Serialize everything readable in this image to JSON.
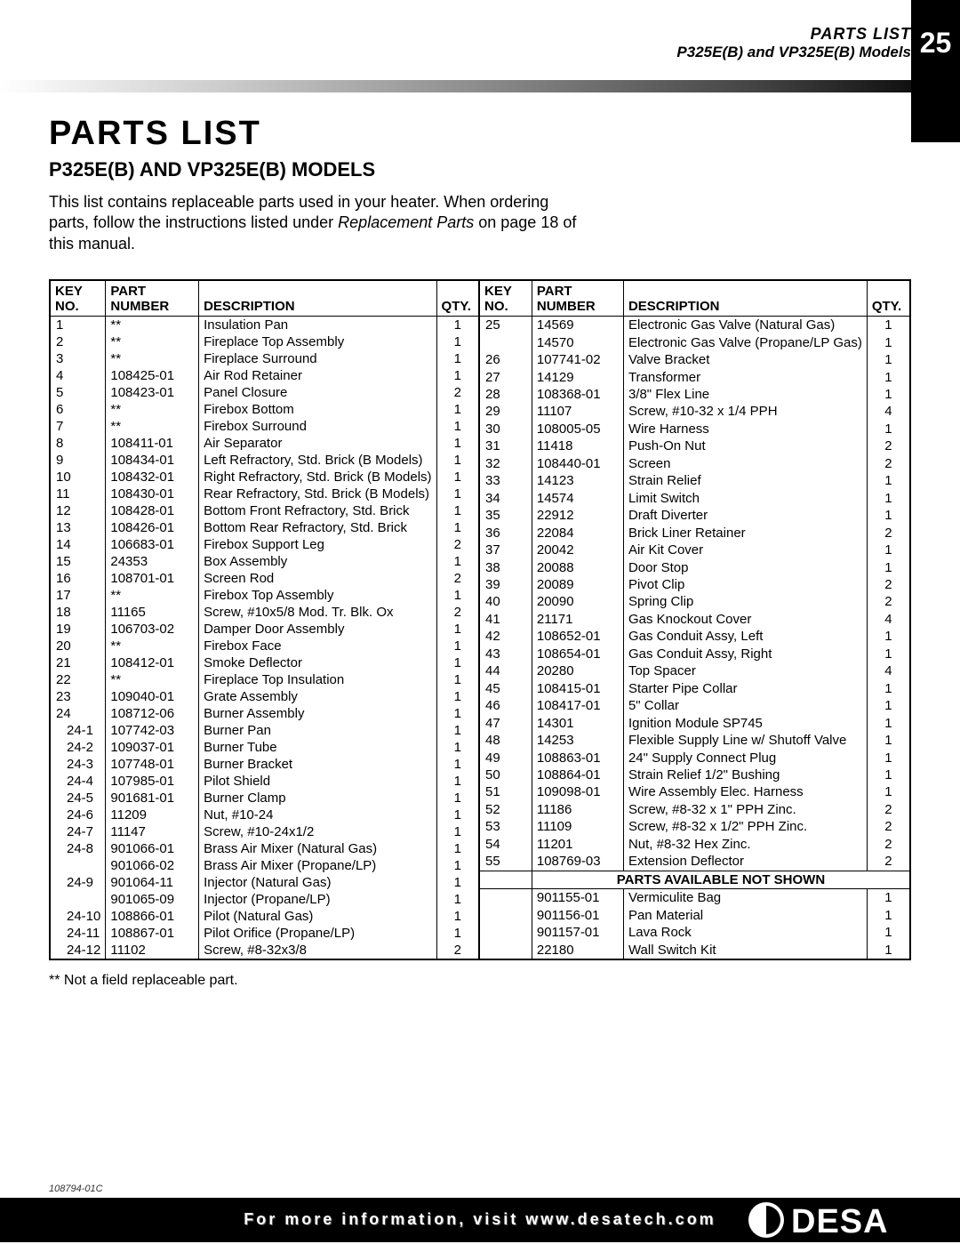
{
  "header": {
    "line1": "PARTS LIST",
    "line2": "P325E(B) and VP325E(B) Models",
    "page_number": "25"
  },
  "title": {
    "main": "PARTS LIST",
    "sub": "P325E(B) AND VP325E(B) MODELS",
    "intro_before": "This list contains replaceable parts used in your heater. When ordering parts, follow the instructions listed under ",
    "intro_italic": "Replacement Parts",
    "intro_after": " on page 18 of this manual."
  },
  "table_headers": {
    "key_top": "KEY",
    "key_bot": "NO.",
    "part_top": "PART",
    "part_bot": "NUMBER",
    "desc": "DESCRIPTION",
    "qty": "QTY."
  },
  "left_rows": [
    {
      "k": "1",
      "sub": false,
      "p": "**",
      "d": "Insulation Pan",
      "q": "1"
    },
    {
      "k": "2",
      "sub": false,
      "p": "**",
      "d": "Fireplace Top Assembly",
      "q": "1"
    },
    {
      "k": "3",
      "sub": false,
      "p": "**",
      "d": "Fireplace Surround",
      "q": "1"
    },
    {
      "k": "4",
      "sub": false,
      "p": "108425-01",
      "d": "Air Rod Retainer",
      "q": "1"
    },
    {
      "k": "5",
      "sub": false,
      "p": "108423-01",
      "d": "Panel Closure",
      "q": "2"
    },
    {
      "k": "6",
      "sub": false,
      "p": "**",
      "d": "Firebox Bottom",
      "q": "1"
    },
    {
      "k": "7",
      "sub": false,
      "p": "**",
      "d": "Firebox Surround",
      "q": "1"
    },
    {
      "k": "8",
      "sub": false,
      "p": "108411-01",
      "d": "Air Separator",
      "q": "1"
    },
    {
      "k": "9",
      "sub": false,
      "p": "108434-01",
      "d": "Left Refractory, Std. Brick (B Models)",
      "q": "1"
    },
    {
      "k": "10",
      "sub": false,
      "p": "108432-01",
      "d": "Right Refractory, Std. Brick (B Models)",
      "q": "1"
    },
    {
      "k": "11",
      "sub": false,
      "p": "108430-01",
      "d": "Rear Refractory, Std. Brick (B Models)",
      "q": "1"
    },
    {
      "k": "12",
      "sub": false,
      "p": "108428-01",
      "d": "Bottom Front Refractory, Std. Brick",
      "q": "1"
    },
    {
      "k": "13",
      "sub": false,
      "p": "108426-01",
      "d": "Bottom Rear Refractory, Std. Brick",
      "q": "1"
    },
    {
      "k": "14",
      "sub": false,
      "p": "106683-01",
      "d": "Firebox Support Leg",
      "q": "2"
    },
    {
      "k": "15",
      "sub": false,
      "p": "24353",
      "d": "Box Assembly",
      "q": "1"
    },
    {
      "k": "16",
      "sub": false,
      "p": "108701-01",
      "d": "Screen Rod",
      "q": "2"
    },
    {
      "k": "17",
      "sub": false,
      "p": "**",
      "d": "Firebox Top Assembly",
      "q": "1"
    },
    {
      "k": "18",
      "sub": false,
      "p": "11165",
      "d": "Screw, #10x5/8 Mod. Tr. Blk. Ox",
      "q": "2"
    },
    {
      "k": "19",
      "sub": false,
      "p": "106703-02",
      "d": "Damper Door Assembly",
      "q": "1"
    },
    {
      "k": "20",
      "sub": false,
      "p": "**",
      "d": "Firebox Face",
      "q": "1"
    },
    {
      "k": "21",
      "sub": false,
      "p": "108412-01",
      "d": "Smoke Deflector",
      "q": "1"
    },
    {
      "k": "22",
      "sub": false,
      "p": "**",
      "d": "Fireplace Top Insulation",
      "q": "1"
    },
    {
      "k": "23",
      "sub": false,
      "p": "109040-01",
      "d": "Grate Assembly",
      "q": "1"
    },
    {
      "k": "24",
      "sub": false,
      "p": "108712-06",
      "d": "Burner Assembly",
      "q": "1"
    },
    {
      "k": "24-1",
      "sub": true,
      "p": "107742-03",
      "d": "Burner Pan",
      "q": "1"
    },
    {
      "k": "24-2",
      "sub": true,
      "p": "109037-01",
      "d": "Burner Tube",
      "q": "1"
    },
    {
      "k": "24-3",
      "sub": true,
      "p": "107748-01",
      "d": "Burner Bracket",
      "q": "1"
    },
    {
      "k": "24-4",
      "sub": true,
      "p": "107985-01",
      "d": "Pilot Shield",
      "q": "1"
    },
    {
      "k": "24-5",
      "sub": true,
      "p": "901681-01",
      "d": "Burner Clamp",
      "q": "1"
    },
    {
      "k": "24-6",
      "sub": true,
      "p": "11209",
      "d": "Nut, #10-24",
      "q": "1"
    },
    {
      "k": "24-7",
      "sub": true,
      "p": "11147",
      "d": "Screw, #10-24x1/2",
      "q": "1"
    },
    {
      "k": "24-8",
      "sub": true,
      "p": "901066-01",
      "d": "Brass Air Mixer (Natural Gas)",
      "q": "1"
    },
    {
      "k": "",
      "sub": true,
      "p": "901066-02",
      "d": "Brass Air Mixer (Propane/LP)",
      "q": "1"
    },
    {
      "k": "24-9",
      "sub": true,
      "p": "901064-11",
      "d": "Injector (Natural Gas)",
      "q": "1"
    },
    {
      "k": "",
      "sub": true,
      "p": "901065-09",
      "d": "Injector (Propane/LP)",
      "q": "1"
    },
    {
      "k": "24-10",
      "sub": true,
      "p": "108866-01",
      "d": "Pilot (Natural Gas)",
      "q": "1"
    },
    {
      "k": "24-11",
      "sub": true,
      "p": "108867-01",
      "d": "Pilot Orifice (Propane/LP)",
      "q": "1"
    },
    {
      "k": "24-12",
      "sub": true,
      "p": "11102",
      "d": "Screw, #8-32x3/8",
      "q": "2"
    }
  ],
  "right_rows": [
    {
      "k": "25",
      "p": "14569",
      "d": "Electronic Gas Valve (Natural Gas)",
      "q": "1"
    },
    {
      "k": "",
      "p": "14570",
      "d": "Electronic Gas Valve (Propane/LP Gas)",
      "q": "1"
    },
    {
      "k": "26",
      "p": "107741-02",
      "d": "Valve Bracket",
      "q": "1"
    },
    {
      "k": "27",
      "p": "14129",
      "d": "Transformer",
      "q": "1"
    },
    {
      "k": "28",
      "p": "108368-01",
      "d": "3/8\" Flex Line",
      "q": "1"
    },
    {
      "k": "29",
      "p": "11107",
      "d": "Screw, #10-32 x 1/4 PPH",
      "q": "4"
    },
    {
      "k": "30",
      "p": "108005-05",
      "d": "Wire Harness",
      "q": "1"
    },
    {
      "k": "31",
      "p": "11418",
      "d": "Push-On Nut",
      "q": "2"
    },
    {
      "k": "32",
      "p": "108440-01",
      "d": "Screen",
      "q": "2"
    },
    {
      "k": "33",
      "p": "14123",
      "d": "Strain Relief",
      "q": "1"
    },
    {
      "k": "34",
      "p": "14574",
      "d": "Limit Switch",
      "q": "1"
    },
    {
      "k": "35",
      "p": "22912",
      "d": "Draft Diverter",
      "q": "1"
    },
    {
      "k": "36",
      "p": "22084",
      "d": "Brick Liner Retainer",
      "q": "2"
    },
    {
      "k": "37",
      "p": "20042",
      "d": "Air Kit Cover",
      "q": "1"
    },
    {
      "k": "38",
      "p": "20088",
      "d": "Door Stop",
      "q": "1"
    },
    {
      "k": "39",
      "p": "20089",
      "d": "Pivot Clip",
      "q": "2"
    },
    {
      "k": "40",
      "p": "20090",
      "d": "Spring Clip",
      "q": "2"
    },
    {
      "k": "41",
      "p": "21171",
      "d": "Gas Knockout Cover",
      "q": "4"
    },
    {
      "k": "42",
      "p": "108652-01",
      "d": "Gas Conduit Assy, Left",
      "q": "1"
    },
    {
      "k": "43",
      "p": "108654-01",
      "d": "Gas Conduit Assy, Right",
      "q": "1"
    },
    {
      "k": "44",
      "p": "20280",
      "d": "Top Spacer",
      "q": "4"
    },
    {
      "k": "45",
      "p": "108415-01",
      "d": "Starter Pipe Collar",
      "q": "1"
    },
    {
      "k": "46",
      "p": "108417-01",
      "d": "5\" Collar",
      "q": "1"
    },
    {
      "k": "47",
      "p": "14301",
      "d": "Ignition Module SP745",
      "q": "1"
    },
    {
      "k": "48",
      "p": "14253",
      "d": "Flexible Supply Line w/ Shutoff Valve",
      "q": "1"
    },
    {
      "k": "49",
      "p": "108863-01",
      "d": "24\" Supply Connect Plug",
      "q": "1"
    },
    {
      "k": "50",
      "p": "108864-01",
      "d": "Strain Relief 1/2\" Bushing",
      "q": "1"
    },
    {
      "k": "51",
      "p": "109098-01",
      "d": "Wire Assembly Elec. Harness",
      "q": "1"
    },
    {
      "k": "52",
      "p": "11186",
      "d": "Screw, #8-32 x 1\" PPH Zinc.",
      "q": "2"
    },
    {
      "k": "53",
      "p": "11109",
      "d": "Screw, #8-32 x 1/2\" PPH Zinc.",
      "q": "2"
    },
    {
      "k": "54",
      "p": "11201",
      "d": "Nut, #8-32 Hex Zinc.",
      "q": "2"
    },
    {
      "k": "55",
      "p": "108769-03",
      "d": "Extension Deflector",
      "q": "2"
    }
  ],
  "not_shown_header": "PARTS AVAILABLE NOT SHOWN",
  "not_shown_rows": [
    {
      "k": "",
      "p": "901155-01",
      "d": "Vermiculite Bag",
      "q": "1"
    },
    {
      "k": "",
      "p": "901156-01",
      "d": "Pan Material",
      "q": "1"
    },
    {
      "k": "",
      "p": "901157-01",
      "d": "Lava Rock",
      "q": "1"
    },
    {
      "k": "",
      "p": "22180",
      "d": "Wall Switch Kit",
      "q": "1"
    }
  ],
  "footnote": "** Not a field replaceable part.",
  "footer_text": "For more information, visit www.desatech.com",
  "doc_id": "108794-01C",
  "logo_text": "DESA"
}
